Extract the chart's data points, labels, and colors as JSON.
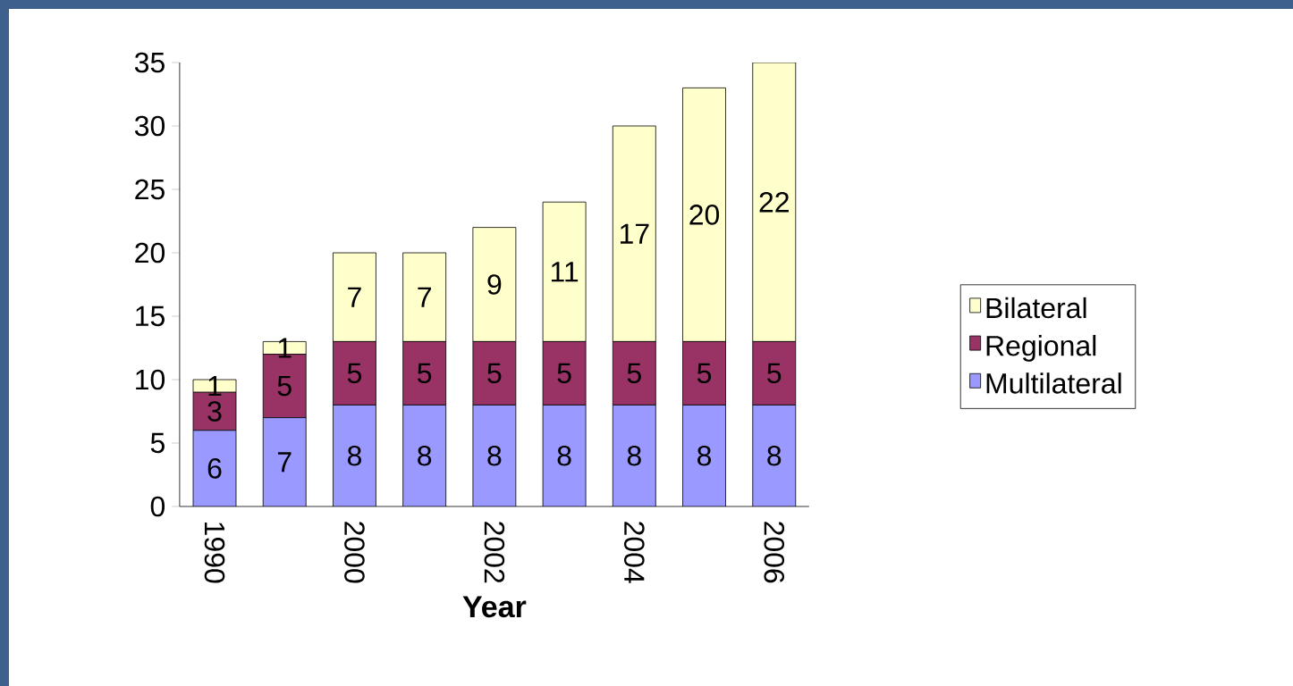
{
  "chart_data": {
    "type": "bar",
    "stacked": true,
    "xlabel": "Year",
    "categories": [
      "1990",
      null,
      "2000",
      null,
      "2002",
      null,
      "2004",
      null,
      "2006"
    ],
    "series": [
      {
        "name": "Multilateral",
        "color": "#9999ff",
        "values": [
          6,
          7,
          8,
          8,
          8,
          8,
          8,
          8,
          8
        ]
      },
      {
        "name": "Regional",
        "color": "#993366",
        "values": [
          3,
          5,
          5,
          5,
          5,
          5,
          5,
          5,
          5
        ]
      },
      {
        "name": "Bilateral",
        "color": "#ffffcc",
        "values": [
          1,
          1,
          7,
          7,
          9,
          11,
          17,
          20,
          22
        ]
      }
    ],
    "ylim": [
      0,
      35
    ],
    "yticks": [
      0,
      5,
      10,
      15,
      20,
      25,
      30,
      35
    ],
    "data_labels": true,
    "legend": "right",
    "grid": false
  }
}
